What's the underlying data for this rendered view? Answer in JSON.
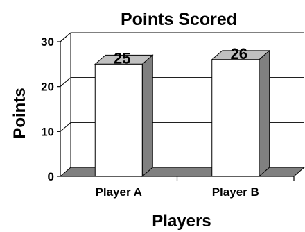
{
  "chart_data": {
    "type": "bar",
    "title": "Points Scored",
    "xlabel": "Players",
    "ylabel": "Points",
    "categories": [
      "Player A",
      "Player B"
    ],
    "values": [
      25,
      26
    ],
    "data_labels": [
      "25",
      "26"
    ],
    "ylim": [
      0,
      30
    ],
    "yticks": [
      0,
      10,
      20,
      30
    ],
    "grid": true,
    "legend": "none",
    "style": "3d",
    "colors": {
      "bar_front": "#ffffff",
      "bar_side": "#808080",
      "bar_top": "#c0c0c0",
      "floor": "#808080",
      "axis": "#000000"
    }
  }
}
